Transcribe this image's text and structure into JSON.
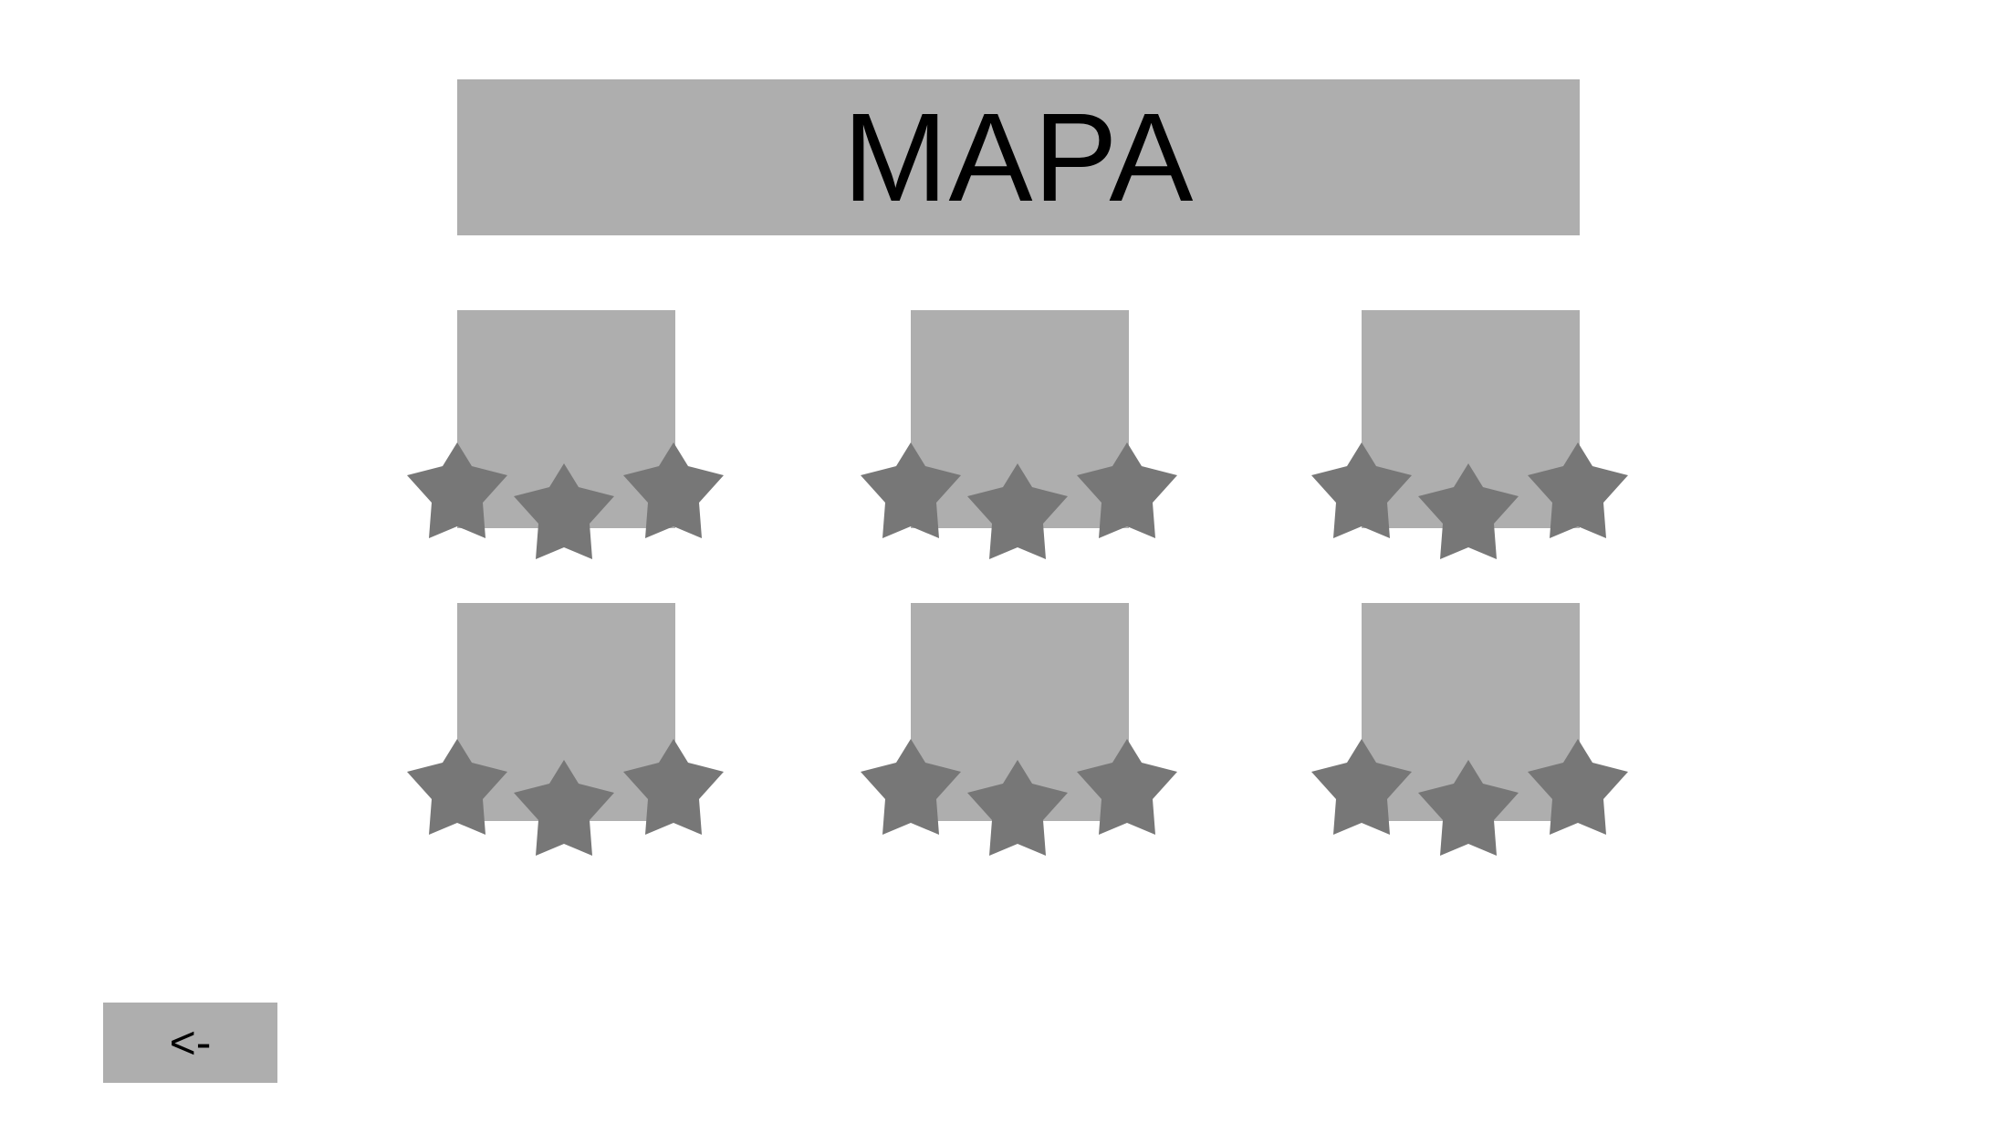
{
  "header": {
    "title": "MAPA"
  },
  "levels": [
    {
      "stars_total": 3,
      "stars_earned": 0
    },
    {
      "stars_total": 3,
      "stars_earned": 0
    },
    {
      "stars_total": 3,
      "stars_earned": 0
    },
    {
      "stars_total": 3,
      "stars_earned": 0
    },
    {
      "stars_total": 3,
      "stars_earned": 0
    },
    {
      "stars_total": 3,
      "stars_earned": 0
    }
  ],
  "back_button": {
    "label": "<-"
  },
  "colors": {
    "tile": "#aeaeae",
    "star": "#777777",
    "background": "#ffffff",
    "text": "#000000"
  },
  "icons": {
    "star": "star-icon"
  }
}
